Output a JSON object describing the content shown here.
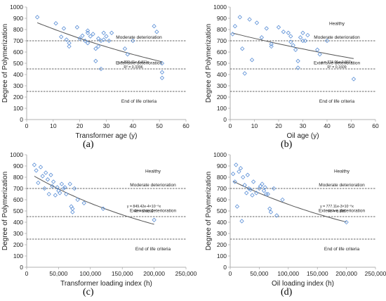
{
  "chart_data": [
    {
      "id": "a",
      "panel_label": "(a)",
      "type": "scatter",
      "xlabel": "Transformer age (y)",
      "ylabel": "Degree of Polymerization",
      "xlim": [
        0,
        60
      ],
      "ylim": [
        0,
        1000
      ],
      "xticks": [
        0,
        10,
        20,
        30,
        40,
        50,
        60
      ],
      "yticks": [
        0,
        100,
        200,
        300,
        400,
        500,
        600,
        700,
        800,
        900,
        1000
      ],
      "thresholds": [
        700,
        450,
        250
      ],
      "zones": [
        "Moderate deterioration",
        "Extensive deterioration",
        "End of life criteria"
      ],
      "equation": "y = 899.41e-0.011x",
      "r2": "R² = 0.3396",
      "trend": {
        "a": 899.41,
        "b": -0.011
      },
      "x": [
        4,
        11,
        13,
        14,
        15,
        16,
        16,
        19,
        20,
        21,
        22,
        23,
        23,
        23,
        24,
        25,
        26,
        26,
        27,
        27,
        28,
        28,
        29,
        29,
        30,
        31,
        32,
        37,
        38,
        40,
        48,
        49,
        51,
        51,
        51
      ],
      "y": [
        910,
        855,
        735,
        810,
        710,
        680,
        650,
        820,
        720,
        745,
        700,
        790,
        770,
        680,
        740,
        760,
        630,
        520,
        720,
        650,
        700,
        450,
        770,
        710,
        740,
        700,
        770,
        630,
        580,
        700,
        830,
        780,
        500,
        420,
        370
      ]
    },
    {
      "id": "b",
      "panel_label": "(b)",
      "type": "scatter",
      "xlabel": "Oil age (y)",
      "ylabel": "Degree of Polymerization",
      "xlim": [
        0,
        60
      ],
      "ylim": [
        0,
        1000
      ],
      "xticks": [
        0,
        10,
        20,
        30,
        40,
        50,
        60
      ],
      "yticks": [
        0,
        100,
        200,
        300,
        400,
        500,
        600,
        700,
        800,
        900,
        1000
      ],
      "thresholds": [
        700,
        450,
        250
      ],
      "zones": [
        "Healthy",
        "Moderate deterioration",
        "Extensive deterioration",
        "End of life criteria"
      ],
      "equation": "y = 774.01e-0.007x",
      "r2": "R² = 0.1609",
      "trend": {
        "a": 774.01,
        "b": -0.007
      },
      "x": [
        1,
        2,
        4,
        5,
        6,
        8,
        9,
        11,
        13,
        15,
        17,
        17,
        20,
        22,
        24,
        25,
        25,
        26,
        27,
        28,
        28,
        29,
        30,
        30,
        31,
        32,
        36,
        37,
        40,
        51
      ],
      "y": [
        760,
        830,
        910,
        630,
        410,
        890,
        530,
        860,
        730,
        810,
        670,
        650,
        820,
        780,
        770,
        740,
        690,
        660,
        620,
        520,
        460,
        730,
        770,
        700,
        700,
        750,
        620,
        580,
        700,
        360
      ]
    },
    {
      "id": "c",
      "panel_label": "(c)",
      "type": "scatter",
      "xlabel": "Transformer loading index (h)",
      "ylabel": "Degree of Polymerization",
      "xlim": [
        0,
        250000
      ],
      "ylim": [
        0,
        1000
      ],
      "xticks": [
        0,
        50000,
        100000,
        150000,
        200000,
        250000
      ],
      "xtick_labels": [
        "0",
        "50,000",
        "100,000",
        "150,000",
        "200,000",
        "250,000"
      ],
      "yticks": [
        0,
        100,
        200,
        300,
        400,
        500,
        600,
        700,
        800,
        900,
        1000
      ],
      "thresholds": [
        700,
        450,
        250
      ],
      "zones": [
        "Healthy",
        "Moderate deterioration",
        "Extensive deterioration",
        "End of life criteria"
      ],
      "equation": "y = 849.42e-4×10⁻⁶x",
      "r2": "R² = 0.6892",
      "trend": {
        "a": 849.42,
        "b": -4e-06
      },
      "x": [
        12000,
        15000,
        18000,
        22000,
        25000,
        28000,
        30000,
        33000,
        35000,
        38000,
        40000,
        42000,
        45000,
        48000,
        50000,
        52000,
        55000,
        58000,
        60000,
        62000,
        68000,
        70000,
        72000,
        72000,
        75000,
        80000,
        90000,
        120000,
        200000
      ],
      "y": [
        910,
        860,
        750,
        890,
        810,
        700,
        840,
        780,
        650,
        820,
        720,
        760,
        640,
        710,
        680,
        660,
        740,
        700,
        710,
        650,
        740,
        540,
        520,
        490,
        700,
        600,
        570,
        520,
        420
      ]
    },
    {
      "id": "d",
      "panel_label": "(d)",
      "type": "scatter",
      "xlabel": "Oil loading index  (h)",
      "ylabel": "Degree of Polymerization",
      "xlim": [
        0,
        250000
      ],
      "ylim": [
        0,
        1000
      ],
      "xticks": [
        0,
        50000,
        100000,
        150000,
        200000,
        250000
      ],
      "xtick_labels": [
        "0",
        "50,000",
        "100,000",
        "150,000",
        "200,000",
        "250,000"
      ],
      "yticks": [
        0,
        100,
        200,
        300,
        400,
        500,
        600,
        700,
        800,
        900,
        1000
      ],
      "thresholds": [
        700,
        450,
        250
      ],
      "zones": [
        "Healthy",
        "Moderate deterioration",
        "Extensive deterioration",
        "End of life criteria"
      ],
      "equation": "y = 777.11e-3×10⁻⁶x",
      "r2": "R² = 0.366",
      "trend": {
        "a": 777.11,
        "b": -3.3e-06
      },
      "x": [
        5000,
        8000,
        10000,
        12000,
        15000,
        18000,
        20000,
        22000,
        25000,
        28000,
        30000,
        32000,
        35000,
        38000,
        40000,
        45000,
        50000,
        52000,
        55000,
        58000,
        60000,
        62000,
        65000,
        68000,
        70000,
        75000,
        80000,
        90000,
        200000
      ],
      "y": [
        830,
        760,
        910,
        540,
        850,
        880,
        410,
        800,
        730,
        660,
        820,
        700,
        690,
        640,
        760,
        660,
        700,
        720,
        740,
        680,
        710,
        650,
        650,
        520,
        490,
        700,
        460,
        600,
        400
      ]
    }
  ]
}
